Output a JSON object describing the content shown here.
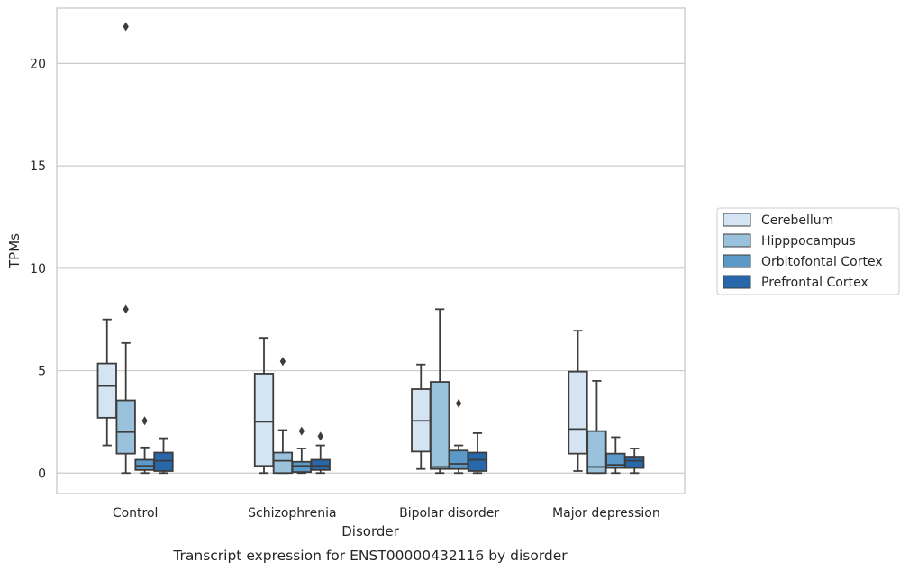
{
  "chart_data": {
    "type": "box",
    "title": "",
    "xlabel": "Disorder",
    "ylabel": "TPMs",
    "caption": "Transcript expression for ENST00000432116 by disorder",
    "ylim": [
      -1,
      22.7
    ],
    "yticks": [
      0,
      5,
      10,
      15,
      20
    ],
    "grid": "horizontal",
    "legend_position": "right",
    "categories": [
      "Control",
      "Schizophrenia",
      "Bipolar disorder",
      "Major depression"
    ],
    "series": [
      {
        "name": "Cerebellum",
        "color": "#d4e4f3",
        "boxes": [
          {
            "whislo": 1.35,
            "q1": 2.7,
            "med": 4.25,
            "q3": 5.35,
            "whishi": 7.5,
            "fliers": []
          },
          {
            "whislo": 0.0,
            "q1": 0.35,
            "med": 2.5,
            "q3": 4.85,
            "whishi": 6.6,
            "fliers": []
          },
          {
            "whislo": 0.2,
            "q1": 1.05,
            "med": 2.55,
            "q3": 4.1,
            "whishi": 5.3,
            "fliers": []
          },
          {
            "whislo": 0.1,
            "q1": 0.95,
            "med": 2.15,
            "q3": 4.95,
            "whishi": 6.95,
            "fliers": []
          }
        ]
      },
      {
        "name": "Hipppocampus",
        "color": "#9ac2dc",
        "boxes": [
          {
            "whislo": 0.0,
            "q1": 0.95,
            "med": 2.0,
            "q3": 3.55,
            "whishi": 6.35,
            "fliers": [
              8.0,
              21.8
            ]
          },
          {
            "whislo": 0.0,
            "q1": 0.0,
            "med": 0.6,
            "q3": 1.0,
            "whishi": 2.1,
            "fliers": [
              5.45
            ]
          },
          {
            "whislo": 0.0,
            "q1": 0.2,
            "med": 0.3,
            "q3": 4.45,
            "whishi": 8.0,
            "fliers": []
          },
          {
            "whislo": 0.0,
            "q1": 0.0,
            "med": 0.3,
            "q3": 2.05,
            "whishi": 4.5,
            "fliers": []
          }
        ]
      },
      {
        "name": "Orbitofontal Cortex",
        "color": "#5b9ac8",
        "boxes": [
          {
            "whislo": 0.0,
            "q1": 0.15,
            "med": 0.35,
            "q3": 0.65,
            "whishi": 1.25,
            "fliers": [
              2.55
            ]
          },
          {
            "whislo": 0.0,
            "q1": 0.05,
            "med": 0.35,
            "q3": 0.55,
            "whishi": 1.2,
            "fliers": [
              2.05
            ]
          },
          {
            "whislo": 0.0,
            "q1": 0.2,
            "med": 0.45,
            "q3": 1.1,
            "whishi": 1.35,
            "fliers": [
              3.4
            ]
          },
          {
            "whislo": 0.0,
            "q1": 0.25,
            "med": 0.4,
            "q3": 0.95,
            "whishi": 1.75,
            "fliers": []
          }
        ]
      },
      {
        "name": "Prefrontal Cortex",
        "color": "#2767aa",
        "boxes": [
          {
            "whislo": 0.0,
            "q1": 0.1,
            "med": 0.6,
            "q3": 1.0,
            "whishi": 1.7,
            "fliers": []
          },
          {
            "whislo": 0.0,
            "q1": 0.15,
            "med": 0.35,
            "q3": 0.65,
            "whishi": 1.35,
            "fliers": [
              1.8
            ]
          },
          {
            "whislo": 0.0,
            "q1": 0.1,
            "med": 0.65,
            "q3": 1.0,
            "whishi": 1.95,
            "fliers": []
          },
          {
            "whislo": 0.0,
            "q1": 0.25,
            "med": 0.6,
            "q3": 0.8,
            "whishi": 1.2,
            "fliers": []
          }
        ]
      }
    ]
  }
}
